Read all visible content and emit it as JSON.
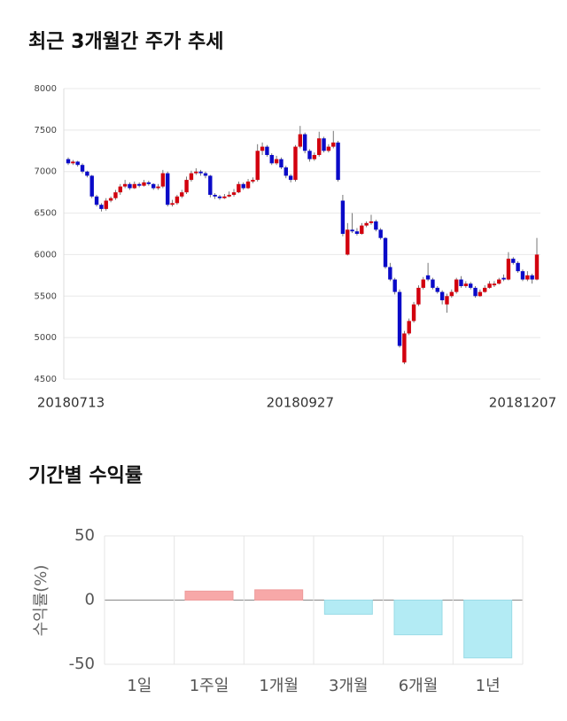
{
  "chart_data": [
    {
      "type": "candlestick",
      "title": "최근 3개월간 주가 추세",
      "categories": [
        "20180713",
        null,
        null,
        null,
        null,
        null,
        null,
        null,
        null,
        null,
        null,
        null,
        null,
        null,
        null,
        null,
        null,
        null,
        null,
        null,
        null,
        null,
        null,
        null,
        null,
        null,
        null,
        null,
        null,
        null,
        null,
        null,
        null,
        null,
        null,
        null,
        null,
        null,
        null,
        null,
        null,
        null,
        null,
        null,
        null,
        null,
        null,
        null,
        null,
        "20180927",
        null,
        null,
        null,
        null,
        null,
        null,
        null,
        null,
        null,
        null,
        null,
        null,
        null,
        null,
        null,
        null,
        null,
        null,
        null,
        null,
        null,
        null,
        null,
        null,
        null,
        null,
        null,
        null,
        null,
        null,
        null,
        null,
        null,
        null,
        null,
        null,
        null,
        null,
        null,
        null,
        null,
        null,
        null,
        null,
        null,
        null,
        "20181207",
        null,
        null,
        null
      ],
      "ohlc": [
        [
          7150,
          7170,
          7080,
          7100
        ],
        [
          7100,
          7140,
          7080,
          7120
        ],
        [
          7120,
          7130,
          7060,
          7080
        ],
        [
          7080,
          7100,
          6980,
          7000
        ],
        [
          7000,
          7010,
          6930,
          6950
        ],
        [
          6950,
          6960,
          6680,
          6700
        ],
        [
          6700,
          6720,
          6580,
          6600
        ],
        [
          6600,
          6620,
          6520,
          6550
        ],
        [
          6550,
          6680,
          6530,
          6650
        ],
        [
          6650,
          6700,
          6630,
          6680
        ],
        [
          6680,
          6780,
          6660,
          6750
        ],
        [
          6750,
          6850,
          6720,
          6820
        ],
        [
          6820,
          6900,
          6800,
          6850
        ],
        [
          6850,
          6870,
          6780,
          6800
        ],
        [
          6800,
          6880,
          6790,
          6850
        ],
        [
          6850,
          6870,
          6810,
          6830
        ],
        [
          6830,
          6900,
          6820,
          6870
        ],
        [
          6870,
          6890,
          6830,
          6850
        ],
        [
          6850,
          6860,
          6780,
          6800
        ],
        [
          6800,
          6850,
          6780,
          6820
        ],
        [
          6820,
          7020,
          6800,
          6980
        ],
        [
          6980,
          7000,
          6580,
          6600
        ],
        [
          6600,
          6660,
          6580,
          6620
        ],
        [
          6620,
          6720,
          6600,
          6700
        ],
        [
          6700,
          6780,
          6680,
          6750
        ],
        [
          6750,
          6940,
          6730,
          6900
        ],
        [
          6900,
          7010,
          6880,
          6980
        ],
        [
          6980,
          7040,
          6960,
          7000
        ],
        [
          7000,
          7020,
          6950,
          6980
        ],
        [
          6980,
          7000,
          6920,
          6950
        ],
        [
          6950,
          6960,
          6690,
          6720
        ],
        [
          6720,
          6740,
          6670,
          6700
        ],
        [
          6700,
          6720,
          6660,
          6680
        ],
        [
          6680,
          6730,
          6670,
          6700
        ],
        [
          6700,
          6760,
          6690,
          6720
        ],
        [
          6720,
          6790,
          6700,
          6750
        ],
        [
          6750,
          6880,
          6740,
          6850
        ],
        [
          6850,
          6870,
          6780,
          6800
        ],
        [
          6800,
          6910,
          6790,
          6880
        ],
        [
          6880,
          6930,
          6860,
          6900
        ],
        [
          6900,
          7330,
          6880,
          7250
        ],
        [
          7250,
          7350,
          7200,
          7300
        ],
        [
          7300,
          7320,
          7180,
          7200
        ],
        [
          7200,
          7220,
          7080,
          7100
        ],
        [
          7100,
          7190,
          7080,
          7150
        ],
        [
          7150,
          7170,
          7030,
          7050
        ],
        [
          7050,
          7070,
          6920,
          6950
        ],
        [
          6950,
          6970,
          6870,
          6900
        ],
        [
          6900,
          7320,
          6880,
          7300
        ],
        [
          7300,
          7550,
          7280,
          7450
        ],
        [
          7450,
          7470,
          7220,
          7250
        ],
        [
          7250,
          7270,
          7120,
          7150
        ],
        [
          7150,
          7230,
          7130,
          7200
        ],
        [
          7200,
          7480,
          7180,
          7400
        ],
        [
          7400,
          7420,
          7230,
          7250
        ],
        [
          7250,
          7330,
          7230,
          7300
        ],
        [
          7300,
          7490,
          7280,
          7350
        ],
        [
          7350,
          7370,
          6880,
          6900
        ],
        [
          6650,
          6720,
          6220,
          6250
        ],
        [
          6000,
          6380,
          5990,
          6300
        ],
        [
          6300,
          6500,
          6260,
          6280
        ],
        [
          6280,
          6320,
          6230,
          6250
        ],
        [
          6250,
          6380,
          6240,
          6350
        ],
        [
          6350,
          6400,
          6330,
          6380
        ],
        [
          6380,
          6480,
          6360,
          6400
        ],
        [
          6400,
          6420,
          6280,
          6300
        ],
        [
          6300,
          6320,
          6180,
          6200
        ],
        [
          6200,
          6210,
          5830,
          5850
        ],
        [
          5850,
          5900,
          5680,
          5700
        ],
        [
          5700,
          5720,
          5520,
          5550
        ],
        [
          5550,
          5580,
          4880,
          4900
        ],
        [
          4700,
          5080,
          4680,
          5050
        ],
        [
          5050,
          5230,
          5030,
          5200
        ],
        [
          5200,
          5430,
          5180,
          5400
        ],
        [
          5400,
          5630,
          5380,
          5600
        ],
        [
          5600,
          5730,
          5580,
          5700
        ],
        [
          5750,
          5900,
          5680,
          5700
        ],
        [
          5700,
          5720,
          5580,
          5600
        ],
        [
          5600,
          5620,
          5530,
          5550
        ],
        [
          5550,
          5570,
          5400,
          5450
        ],
        [
          5400,
          5530,
          5300,
          5500
        ],
        [
          5500,
          5580,
          5480,
          5550
        ],
        [
          5550,
          5720,
          5530,
          5700
        ],
        [
          5700,
          5740,
          5600,
          5620
        ],
        [
          5620,
          5680,
          5600,
          5650
        ],
        [
          5650,
          5670,
          5580,
          5600
        ],
        [
          5600,
          5620,
          5480,
          5500
        ],
        [
          5500,
          5580,
          5490,
          5550
        ],
        [
          5550,
          5630,
          5540,
          5600
        ],
        [
          5600,
          5680,
          5590,
          5650
        ],
        [
          5630,
          5680,
          5610,
          5650
        ],
        [
          5650,
          5720,
          5640,
          5700
        ],
        [
          5720,
          5760,
          5680,
          5700
        ],
        [
          5700,
          6030,
          5690,
          5950
        ],
        [
          5950,
          5970,
          5880,
          5900
        ],
        [
          5900,
          5920,
          5780,
          5800
        ],
        [
          5800,
          5820,
          5680,
          5700
        ],
        [
          5700,
          5800,
          5680,
          5750
        ],
        [
          5750,
          5770,
          5650,
          5700
        ],
        [
          5700,
          6200,
          5690,
          6000
        ]
      ],
      "up_color": "#d2000e",
      "down_color": "#0a0ac8",
      "ylim": [
        4500,
        8000
      ],
      "yticks": [
        4500,
        5000,
        5500,
        6000,
        6500,
        7000,
        7500,
        8000
      ],
      "grid": true
    },
    {
      "type": "bar",
      "title": "기간별 수익률",
      "y_label": "수익률(%)",
      "categories": [
        "1일",
        "1주일",
        "1개월",
        "3개월",
        "6개월",
        "1년"
      ],
      "values": [
        0,
        7,
        8,
        -11,
        -27,
        -45
      ],
      "positive_color": "#f7a8a8",
      "negative_color": "#b3ebf4",
      "ylim": [
        -50,
        50
      ],
      "yticks": [
        -50,
        0,
        50
      ],
      "grid": true
    }
  ]
}
